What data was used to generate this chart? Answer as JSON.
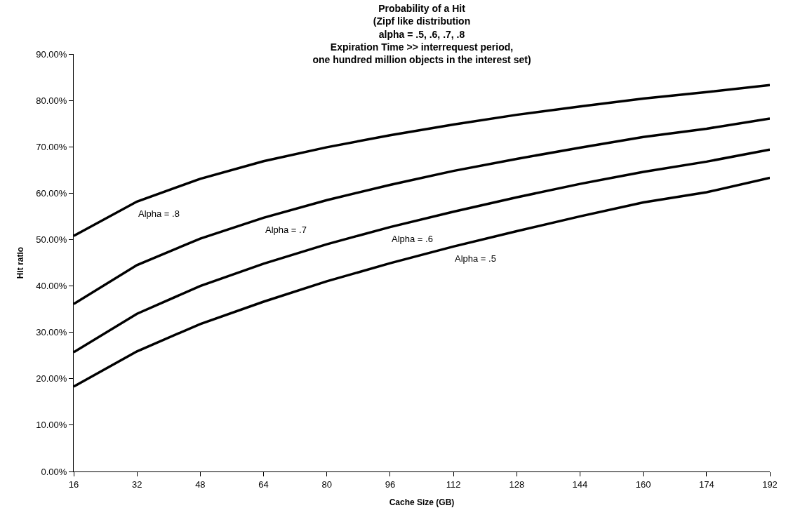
{
  "chart_data": {
    "type": "line",
    "title": "Probability of a Hit\n(Zipf like distribution\nalpha = .5, .6, .7, .8\nExpiration Time >> interrequest period,\none hundred million objects in the interest set)",
    "xlabel": "Cache Size (GB)",
    "ylabel": "Hit ratio",
    "categories": [
      "16",
      "32",
      "48",
      "64",
      "80",
      "96",
      "112",
      "128",
      "144",
      "160",
      "174",
      "192"
    ],
    "series": [
      {
        "color": "#000000",
        "values": [
          50.8,
          58.2,
          63.1,
          66.9,
          69.9,
          72.5,
          74.8,
          76.9,
          78.7,
          80.4,
          81.8,
          83.3
        ]
      },
      {
        "color": "#000000",
        "values": [
          36.1,
          44.5,
          50.2,
          54.7,
          58.5,
          61.8,
          64.8,
          67.4,
          69.8,
          72.1,
          73.9,
          76.1
        ]
      },
      {
        "color": "#000000",
        "values": [
          25.7,
          34.0,
          40.0,
          44.8,
          49.0,
          52.7,
          56.0,
          59.1,
          62.0,
          64.6,
          66.8,
          69.4
        ]
      },
      {
        "color": "#000000",
        "values": [
          18.3,
          25.9,
          31.8,
          36.6,
          41.0,
          44.9,
          48.5,
          51.8,
          55.0,
          58.0,
          60.2,
          63.3
        ]
      }
    ],
    "annotations": [
      {
        "text": "Alpha = .8",
        "x": "32",
        "y": 58.2
      },
      {
        "text": "Alpha = .7",
        "x": "64",
        "y": 54.7
      },
      {
        "text": "Alpha = .6",
        "x": "96",
        "y": 52.7
      },
      {
        "text": "Alpha = .5",
        "x": "112",
        "y": 48.5
      }
    ],
    "ylim": [
      0,
      90
    ],
    "yticks": [
      {
        "value": 0,
        "label": "0.00%"
      },
      {
        "value": 10,
        "label": "10.00%"
      },
      {
        "value": 20,
        "label": "20.00%"
      },
      {
        "value": 30,
        "label": "30.00%"
      },
      {
        "value": 40,
        "label": "40.00%"
      },
      {
        "value": 50,
        "label": "50.00%"
      },
      {
        "value": 60,
        "label": "60.00%"
      },
      {
        "value": 70,
        "label": "70.00%"
      },
      {
        "value": 80,
        "label": "80.00%"
      },
      {
        "value": 90,
        "label": "90.00%"
      }
    ],
    "marker": "none",
    "line_style": "solid"
  }
}
